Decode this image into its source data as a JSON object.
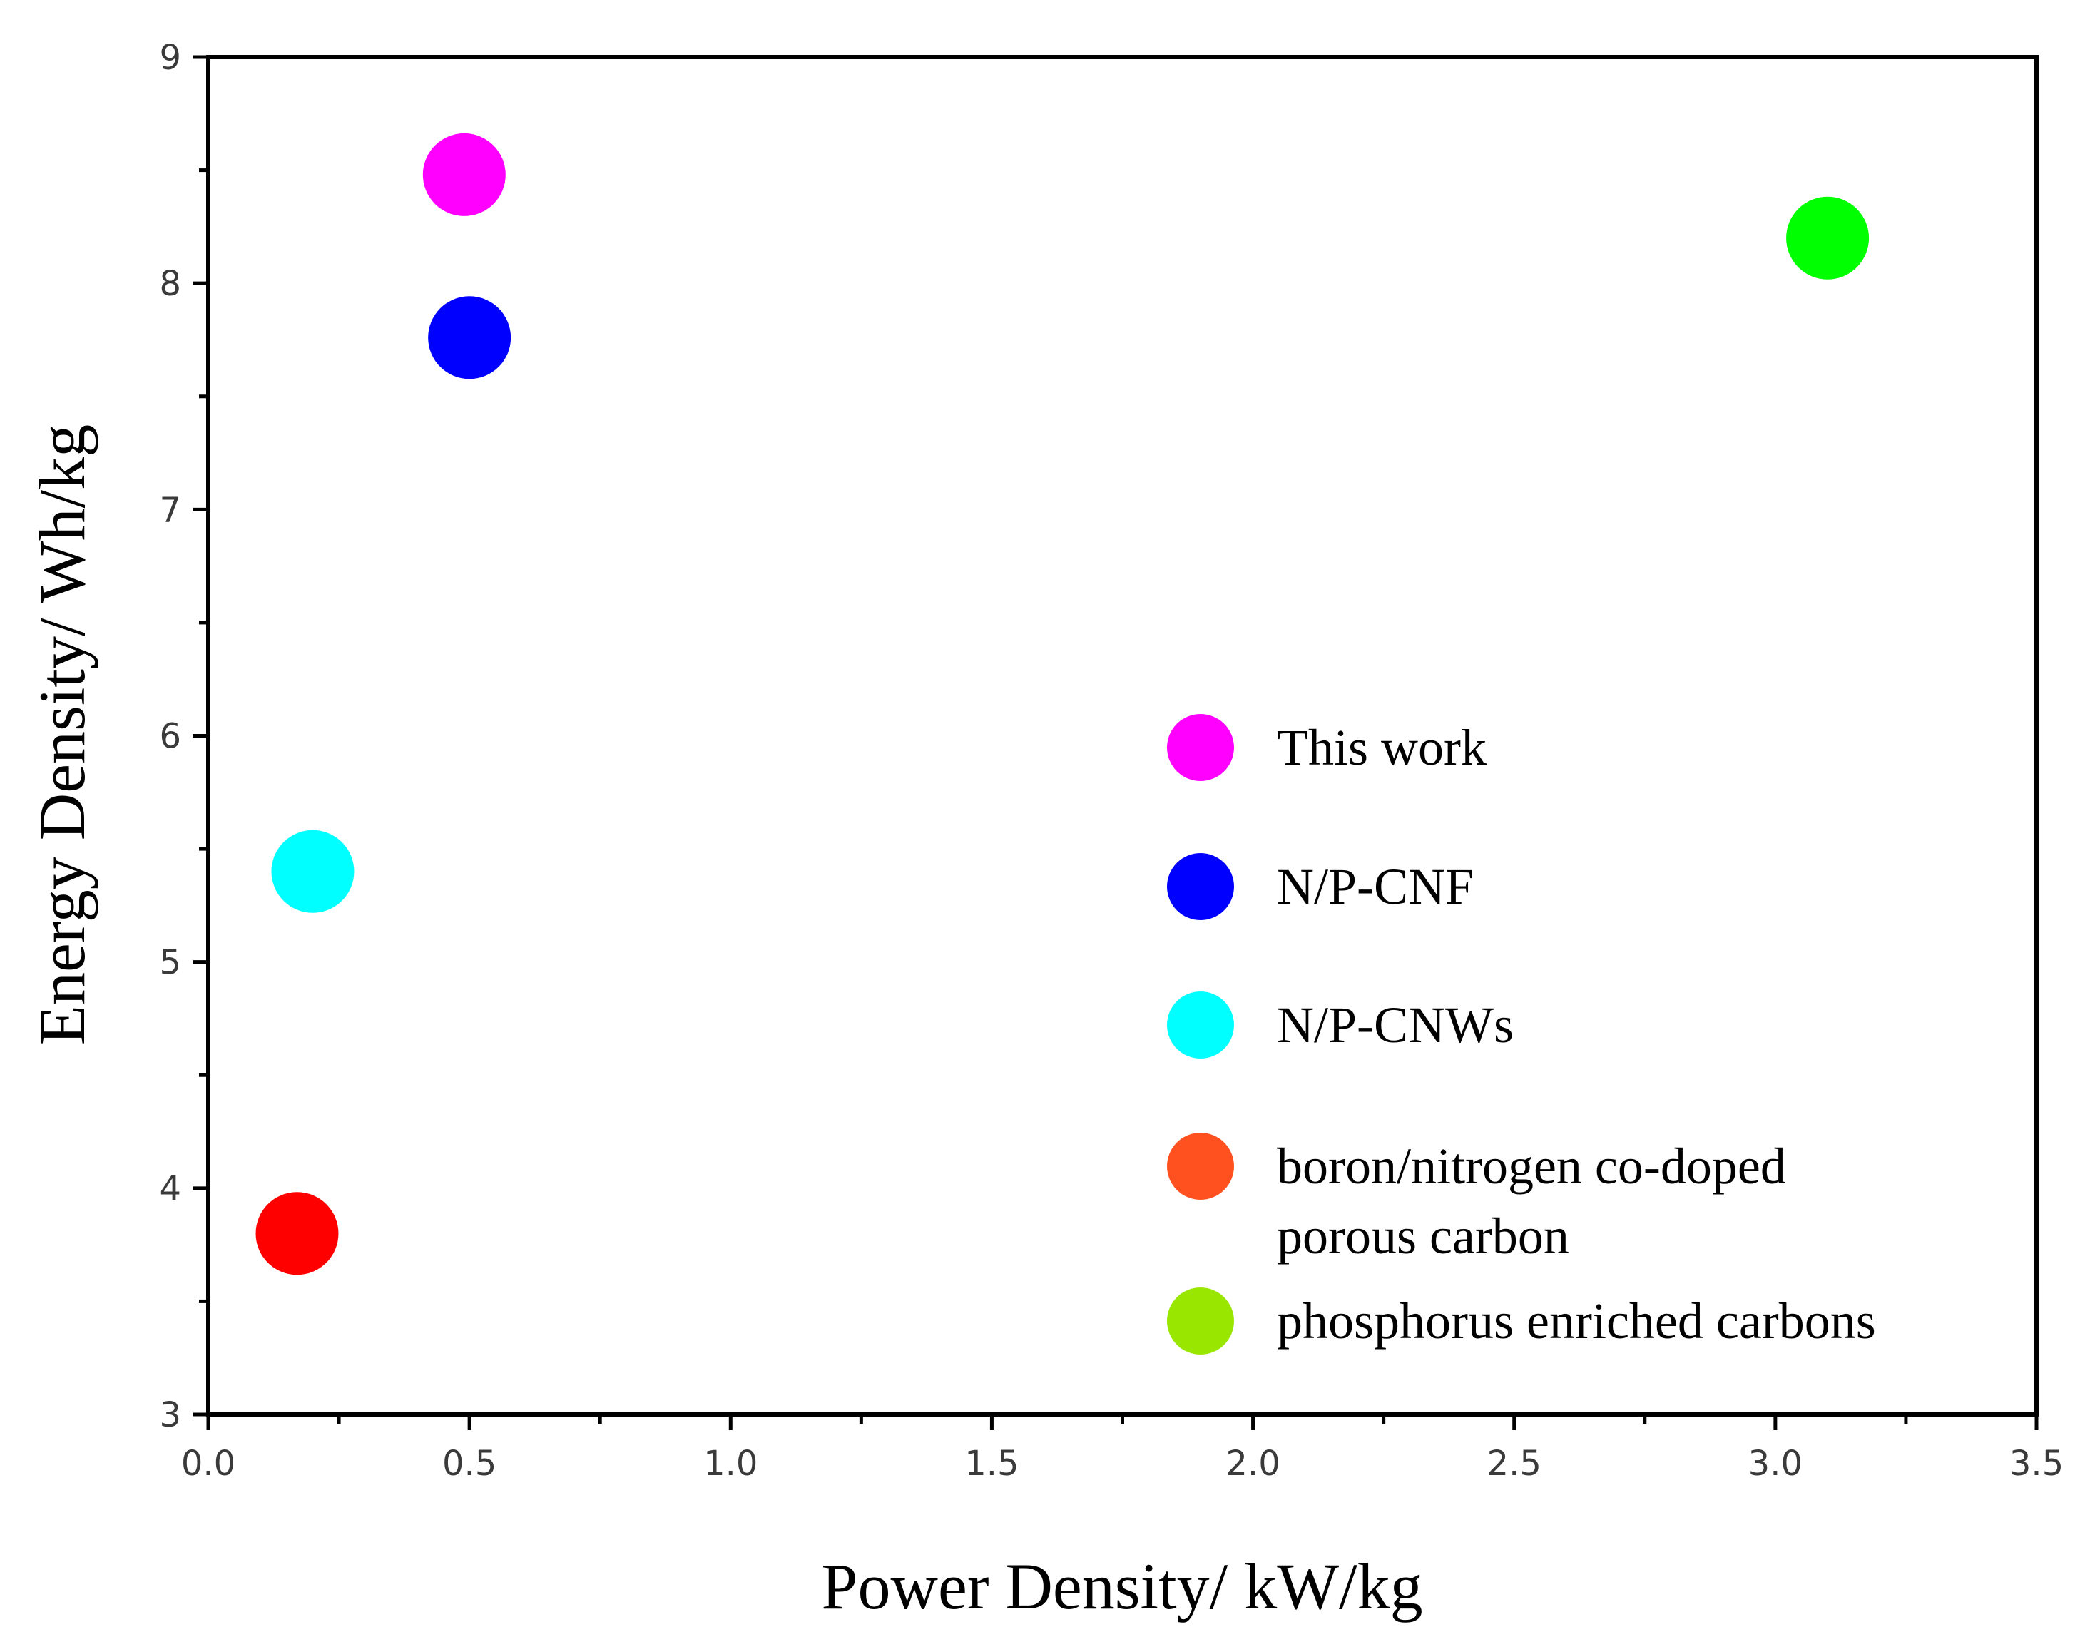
{
  "chart_data": {
    "type": "scatter",
    "title": "",
    "xlabel": "Power Density/ kW/kg",
    "ylabel": "Energy Density/ Wh/kg",
    "xlim": [
      0.0,
      3.5
    ],
    "ylim": [
      3,
      9
    ],
    "x_ticks": [
      "0.0",
      "0.5",
      "1.0",
      "1.5",
      "2.0",
      "2.5",
      "3.0",
      "3.5"
    ],
    "y_ticks": [
      "3",
      "4",
      "5",
      "6",
      "7",
      "8",
      "9"
    ],
    "grid": false,
    "legend_position": "right-center",
    "series": [
      {
        "name": "This work",
        "color": "#ff00ff",
        "legend_color": "#ff00ff",
        "points": [
          {
            "x": 0.49,
            "y": 8.48
          }
        ]
      },
      {
        "name": "N/P-CNF",
        "color": "#0000ff",
        "legend_color": "#0000ff",
        "points": [
          {
            "x": 0.5,
            "y": 7.76
          }
        ]
      },
      {
        "name": "N/P-CNWs",
        "color": "#00ffff",
        "legend_color": "#00ffff",
        "points": [
          {
            "x": 0.2,
            "y": 5.4
          }
        ]
      },
      {
        "name": "boron/nitrogen co-doped porous carbon",
        "legend_lines": [
          "boron/nitrogen co-doped",
          "porous carbon"
        ],
        "color": "#ff0000",
        "legend_color": "#ff5020",
        "points": [
          {
            "x": 0.17,
            "y": 3.8
          }
        ]
      },
      {
        "name": "phosphorus enriched carbons",
        "color": "#00ff00",
        "legend_color": "#99e600",
        "points": [
          {
            "x": 3.1,
            "y": 8.2
          }
        ]
      }
    ]
  }
}
